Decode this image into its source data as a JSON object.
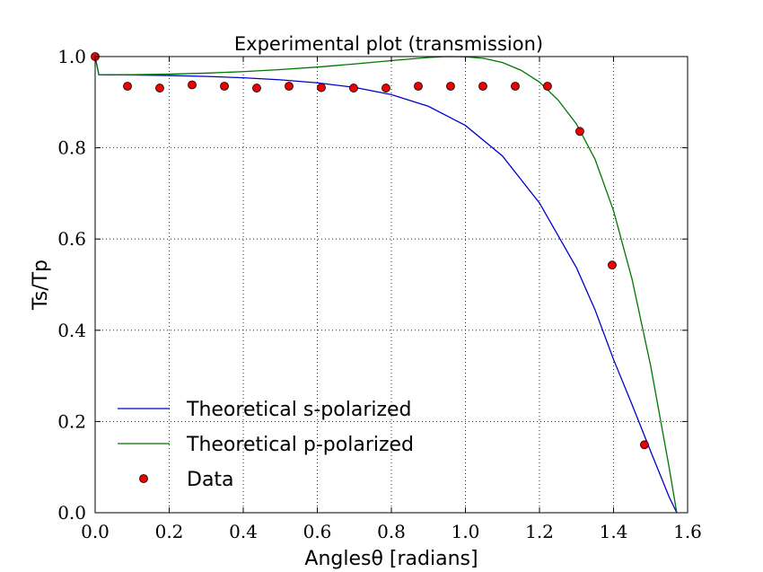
{
  "chart_data": {
    "type": "line",
    "title": "Experimental plot (transmission)",
    "xlabel": "Anglesθ [radians]",
    "ylabel": "Ts/Tp",
    "xlim": [
      0.0,
      1.6
    ],
    "ylim": [
      0.0,
      1.0
    ],
    "xticks": [
      "0.0",
      "0.2",
      "0.4",
      "0.6",
      "0.8",
      "1.0",
      "1.2",
      "1.4",
      "1.6"
    ],
    "yticks": [
      "0.0",
      "0.2",
      "0.4",
      "0.6",
      "0.8",
      "1.0"
    ],
    "grid": true,
    "legend_position": "lower-left",
    "series": [
      {
        "name": "Theoretical s-polarized",
        "style": "line",
        "color": "#0000cc",
        "x": [
          0.0,
          0.01,
          0.1,
          0.2,
          0.3,
          0.4,
          0.5,
          0.6,
          0.7,
          0.8,
          0.9,
          1.0,
          1.1,
          1.2,
          1.3,
          1.35,
          1.4,
          1.45,
          1.5,
          1.55,
          1.5708
        ],
        "y": [
          1.0,
          0.96,
          0.9596,
          0.9585,
          0.9565,
          0.9535,
          0.949,
          0.9425,
          0.9325,
          0.9165,
          0.891,
          0.849,
          0.782,
          0.679,
          0.537,
          0.445,
          0.336,
          0.237,
          0.135,
          0.035,
          0.0
        ]
      },
      {
        "name": "Theoretical p-polarized",
        "style": "line",
        "color": "#007700",
        "x": [
          0.0,
          0.01,
          0.1,
          0.2,
          0.3,
          0.4,
          0.5,
          0.6,
          0.7,
          0.8,
          0.9,
          0.95,
          1.0,
          1.05,
          1.1,
          1.15,
          1.2,
          1.25,
          1.3,
          1.35,
          1.4,
          1.45,
          1.5,
          1.55,
          1.5708
        ],
        "y": [
          1.0,
          0.96,
          0.9603,
          0.9615,
          0.9637,
          0.967,
          0.9715,
          0.977,
          0.9838,
          0.9912,
          0.998,
          1.0,
          0.9995,
          0.996,
          0.987,
          0.97,
          0.944,
          0.905,
          0.852,
          0.775,
          0.662,
          0.512,
          0.323,
          0.1,
          0.0
        ]
      },
      {
        "name": "Data",
        "style": "markers",
        "color": "#ee0000",
        "x": [
          0.0,
          0.0873,
          0.1745,
          0.2618,
          0.3491,
          0.4363,
          0.5236,
          0.6109,
          0.6981,
          0.7854,
          0.8727,
          0.9599,
          1.0472,
          1.1345,
          1.2217,
          1.309,
          1.3963,
          1.4835
        ],
        "y": [
          1.0,
          0.935,
          0.931,
          0.938,
          0.935,
          0.931,
          0.935,
          0.932,
          0.931,
          0.931,
          0.935,
          0.935,
          0.935,
          0.935,
          0.935,
          0.836,
          0.543,
          0.149
        ]
      }
    ]
  }
}
